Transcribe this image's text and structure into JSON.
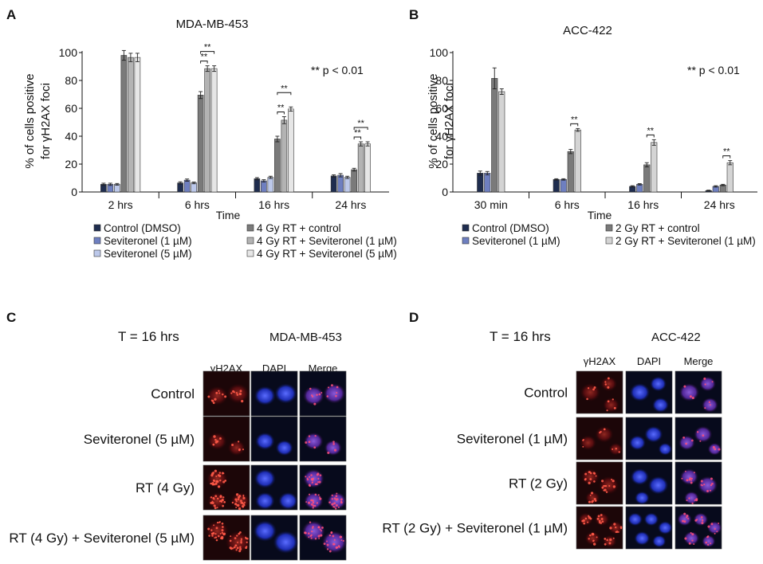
{
  "panel_letters": [
    "A",
    "B",
    "C",
    "D"
  ],
  "significance_label": "** p < 0.01",
  "star_label": "**",
  "chart_data": [
    {
      "type": "bar",
      "title": "MDA-MB-453",
      "ylabel_line1": "% of cells positive",
      "ylabel_line2": "for γH2AX foci",
      "xlabel": "Time",
      "ylim": [
        0,
        100
      ],
      "yticks": [
        "0",
        "20",
        "40",
        "60",
        "80",
        "100"
      ],
      "categories": [
        "2 hrs",
        "6 hrs",
        "16 hrs",
        "24 hrs"
      ],
      "series": [
        {
          "name": "Control (DMSO)",
          "color": "#1f2d4f",
          "values": [
            5.5,
            6.5,
            9.5,
            11.5
          ],
          "errors": [
            0.8,
            0.8,
            0.8,
            0.8
          ]
        },
        {
          "name": "Seviteronel (1 µM)",
          "color": "#6e7fc0",
          "values": [
            5.5,
            8.5,
            8.0,
            12.0
          ],
          "errors": [
            0.8,
            0.8,
            0.8,
            1.2
          ]
        },
        {
          "name": "Seviteronel (5 µM)",
          "color": "#bcc8ea",
          "values": [
            5.5,
            6.5,
            10.5,
            10.5
          ],
          "errors": [
            0.6,
            0.6,
            0.8,
            0.8
          ]
        },
        {
          "name": "4 Gy RT + control",
          "color": "#7a7a7a",
          "values": [
            98,
            69.5,
            38,
            16
          ],
          "errors": [
            3.5,
            2.5,
            2,
            1
          ]
        },
        {
          "name": "4 Gy RT + Seviteronel (1 µM)",
          "color": "#b3b3b3",
          "values": [
            96.5,
            88.5,
            51.5,
            34.5
          ],
          "errors": [
            3,
            2,
            2.5,
            1.5
          ]
        },
        {
          "name": "4 Gy RT + Seviteronel (5 µM)",
          "color": "#e6e6e6",
          "values": [
            96.5,
            88.5,
            59.5,
            34.5
          ],
          "errors": [
            3,
            2,
            1.5,
            1.5
          ]
        }
      ],
      "significance": [
        {
          "category": 1,
          "from_series": 3,
          "to_series": 4,
          "label": "**"
        },
        {
          "category": 1,
          "from_series": 3,
          "to_series": 5,
          "label": "**"
        },
        {
          "category": 2,
          "from_series": 3,
          "to_series": 4,
          "label": "**"
        },
        {
          "category": 2,
          "from_series": 3,
          "to_series": 5,
          "label": "**"
        },
        {
          "category": 3,
          "from_series": 3,
          "to_series": 4,
          "label": "**"
        },
        {
          "category": 3,
          "from_series": 3,
          "to_series": 5,
          "label": "**"
        }
      ]
    },
    {
      "type": "bar",
      "title": "ACC-422",
      "ylabel_line1": "% of cells positive",
      "ylabel_line2": "for γH2AX foci",
      "xlabel": "Time",
      "ylim": [
        0,
        100
      ],
      "yticks": [
        "0",
        "20",
        "40",
        "60",
        "80",
        "100"
      ],
      "categories": [
        "30 min",
        "6 hrs",
        "16 hrs",
        "24 hrs"
      ],
      "series": [
        {
          "name": "Control (DMSO)",
          "color": "#1f2d4f",
          "values": [
            13.5,
            9,
            4,
            1
          ],
          "errors": [
            1.5,
            0.5,
            0.5,
            0.3
          ]
        },
        {
          "name": "Seviteronel (1 µM)",
          "color": "#6e7fc0",
          "values": [
            13.5,
            9,
            5.5,
            4
          ],
          "errors": [
            1.2,
            0.5,
            0.5,
            0.5
          ]
        },
        {
          "name": "2 Gy RT + control",
          "color": "#7a7a7a",
          "values": [
            81.5,
            29,
            19.5,
            5
          ],
          "errors": [
            7.5,
            1.5,
            1.5,
            0.5
          ]
        },
        {
          "name": "2 Gy RT + Seviteronel (1 µM)",
          "color": "#d4d4d4",
          "values": [
            72,
            44.5,
            35.5,
            21
          ],
          "errors": [
            2,
            1,
            2,
            1.5
          ]
        }
      ],
      "significance": [
        {
          "category": 1,
          "from_series": 2,
          "to_series": 3,
          "label": "**"
        },
        {
          "category": 2,
          "from_series": 2,
          "to_series": 3,
          "label": "**"
        },
        {
          "category": 3,
          "from_series": 2,
          "to_series": 3,
          "label": "**"
        }
      ]
    }
  ],
  "micro_panels": [
    {
      "time_label": "T = 16 hrs",
      "cell_line": "MDA-MB-453",
      "columns": [
        "γH2AX",
        "DAPI",
        "Merge"
      ],
      "rows": [
        "Control",
        "Seviteronel (5 µM)",
        "RT (4 Gy)",
        "RT (4 Gy) + Seviteronel (5 µM)"
      ],
      "channel_colors": {
        "gh2ax": "#d8261e",
        "dapi": "#2b3fd6"
      }
    },
    {
      "time_label": "T = 16 hrs",
      "cell_line": "ACC-422",
      "columns": [
        "γH2AX",
        "DAPI",
        "Merge"
      ],
      "rows": [
        "Control",
        "Seviteronel (1 µM)",
        "RT (2 Gy)",
        "RT (2 Gy) + Seviteronel (1 µM)"
      ],
      "channel_colors": {
        "gh2ax": "#c42a22",
        "dapi": "#3344e0"
      }
    }
  ]
}
